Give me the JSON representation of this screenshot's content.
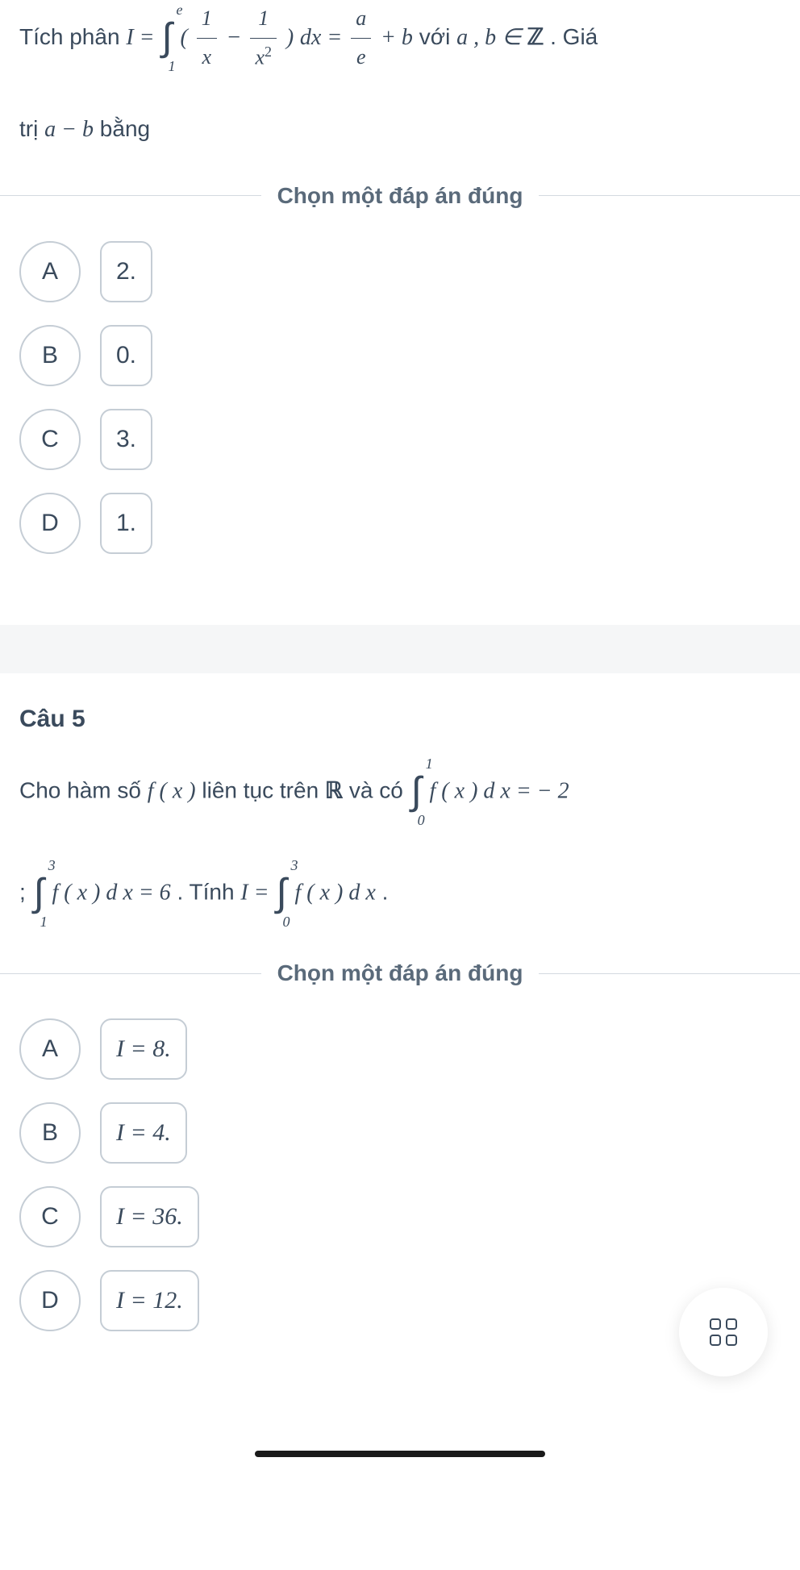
{
  "q4": {
    "text_prefix": "Tích phân ",
    "I_eq": "I = ",
    "int_lower": "1",
    "int_upper": "e",
    "frac1_num": "1",
    "frac1_den": "x",
    "minus": " − ",
    "frac2_num": "1",
    "frac2_den_base": "x",
    "frac2_den_exp": "2",
    "dx": " dx = ",
    "frac3_num": "a",
    "frac3_den": "e",
    "plus_b": " + b",
    "with_text": " với ",
    "ab_in": "a , b ∈ ",
    "Z": "ℤ",
    "gia": ". Giá",
    "tri_text": "trị ",
    "a_minus_b": "a − b",
    "bang": " bằng",
    "prompt": "Chọn một đáp án đúng",
    "options": [
      {
        "letter": "A",
        "value": "2."
      },
      {
        "letter": "B",
        "value": "0."
      },
      {
        "letter": "C",
        "value": "3."
      },
      {
        "letter": "D",
        "value": "1."
      }
    ]
  },
  "q5": {
    "title": "Câu 5",
    "line1_a": "Cho hàm số ",
    "fx": "f ( x )",
    "line1_b": " liên tục trên ",
    "R": "ℝ",
    "line1_c": " và có ",
    "int1_lower": "0",
    "int1_upper": "1",
    "int1_expr": "f ( x ) d x = − 2",
    "semicolon": "; ",
    "int2_lower": "1",
    "int2_upper": "3",
    "int2_expr": "f ( x ) d x = 6",
    "tinh": ". Tính ",
    "I_eq": "I = ",
    "int3_lower": "0",
    "int3_upper": "3",
    "int3_expr": "f ( x ) d x",
    "period": ".",
    "prompt": "Chọn một đáp án đúng",
    "options": [
      {
        "letter": "A",
        "value": "I = 8."
      },
      {
        "letter": "B",
        "value": "I = 4."
      },
      {
        "letter": "C",
        "value": "I = 36."
      },
      {
        "letter": "D",
        "value": "I = 12."
      }
    ]
  },
  "colors": {
    "text": "#3a4a5c",
    "border": "#c5cdd5",
    "divider": "#d4dae0",
    "gap_bg": "#f5f6f7"
  }
}
